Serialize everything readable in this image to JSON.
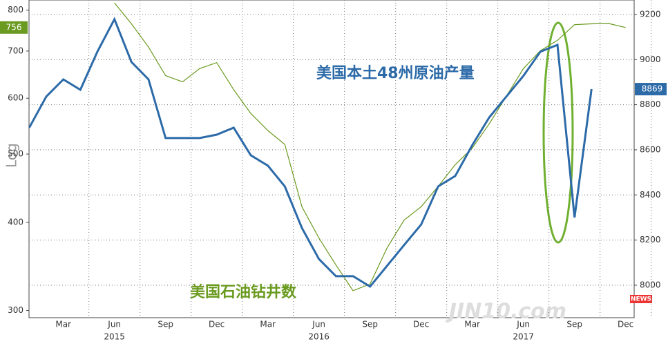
{
  "chart_data": {
    "type": "line",
    "x": [
      "2015-01",
      "2015-02",
      "2015-03",
      "2015-04",
      "2015-05",
      "2015-06",
      "2015-07",
      "2015-08",
      "2015-09",
      "2015-10",
      "2015-11",
      "2015-12",
      "2016-01",
      "2016-02",
      "2016-03",
      "2016-04",
      "2016-05",
      "2016-06",
      "2016-07",
      "2016-08",
      "2016-09",
      "2016-10",
      "2016-11",
      "2016-12",
      "2017-01",
      "2017-02",
      "2017-03",
      "2017-04",
      "2017-05",
      "2017-06",
      "2017-07",
      "2017-08",
      "2017-09",
      "2017-10",
      "2017-11",
      "2017-12"
    ],
    "xlim": [
      "2015-01",
      "2017-12"
    ],
    "xticks": [
      {
        "value": "2015-03",
        "label": "Mar"
      },
      {
        "value": "2015-06",
        "label": "Jun"
      },
      {
        "value": "2015-09",
        "label": "Sep"
      },
      {
        "value": "2015-12",
        "label": "Dec"
      },
      {
        "value": "2016-03",
        "label": "Mar"
      },
      {
        "value": "2016-06",
        "label": "Jun"
      },
      {
        "value": "2016-09",
        "label": "Sep"
      },
      {
        "value": "2016-12",
        "label": "Dec"
      },
      {
        "value": "2017-03",
        "label": "Mar"
      },
      {
        "value": "2017-06",
        "label": "Jun"
      },
      {
        "value": "2017-09",
        "label": "Sep"
      },
      {
        "value": "2017-12",
        "label": "Dec"
      }
    ],
    "years": [
      {
        "value": "2015-06",
        "label": "2015"
      },
      {
        "value": "2016-06",
        "label": "2016"
      },
      {
        "value": "2017-06",
        "label": "2017"
      }
    ],
    "ylabel": "Log",
    "yscale": "log",
    "ylim": [
      293,
      827
    ],
    "yticks": [
      300,
      400,
      500,
      600,
      700,
      800
    ],
    "y2lim": [
      7856,
      9264
    ],
    "y2ticks": [
      8000,
      8200,
      8400,
      8600,
      8800,
      9000,
      9200
    ],
    "grid": true,
    "watermark": "JIN10.com",
    "watermark_badge": "NEWS",
    "series": [
      {
        "name": "美国石油钻井数",
        "color": "#6a9a1f",
        "axis": "y",
        "values": [
          null,
          null,
          null,
          null,
          null,
          819,
          765,
          709,
          646,
          633,
          661,
          674,
          617,
          571,
          540,
          516,
          421,
          380,
          348,
          320,
          327,
          368,
          403,
          421,
          450,
          483,
          510,
          552,
          604,
          661,
          701,
          725,
          763,
          765,
          766,
          756
        ],
        "value_labels": [
          null,
          null,
          null,
          null,
          null,
          null,
          null,
          null,
          null,
          null,
          null,
          null,
          null,
          null,
          null,
          null,
          null,
          null,
          null,
          null,
          null,
          null,
          null,
          null,
          null,
          null,
          null,
          null,
          null,
          null,
          null,
          null,
          null,
          null,
          null,
          "756"
        ]
      },
      {
        "name": "美国本土48州原油产量",
        "color": "#2c6aa8",
        "axis": "y2",
        "values": [
          8698,
          8836,
          8912,
          8866,
          9035,
          9179,
          8989,
          8912,
          8652,
          8652,
          8652,
          8667,
          8698,
          8576,
          8530,
          8438,
          8254,
          8116,
          8040,
          8040,
          7994,
          8086,
          8178,
          8269,
          8438,
          8484,
          8621,
          8744,
          8836,
          8928,
          9035,
          9065,
          8300,
          8869,
          null,
          null
        ],
        "value_labels": [
          null,
          null,
          null,
          null,
          null,
          null,
          null,
          null,
          null,
          null,
          null,
          null,
          null,
          null,
          null,
          null,
          null,
          null,
          null,
          null,
          null,
          null,
          null,
          null,
          null,
          null,
          null,
          null,
          null,
          null,
          null,
          null,
          null,
          "8869",
          null,
          null
        ]
      }
    ]
  }
}
